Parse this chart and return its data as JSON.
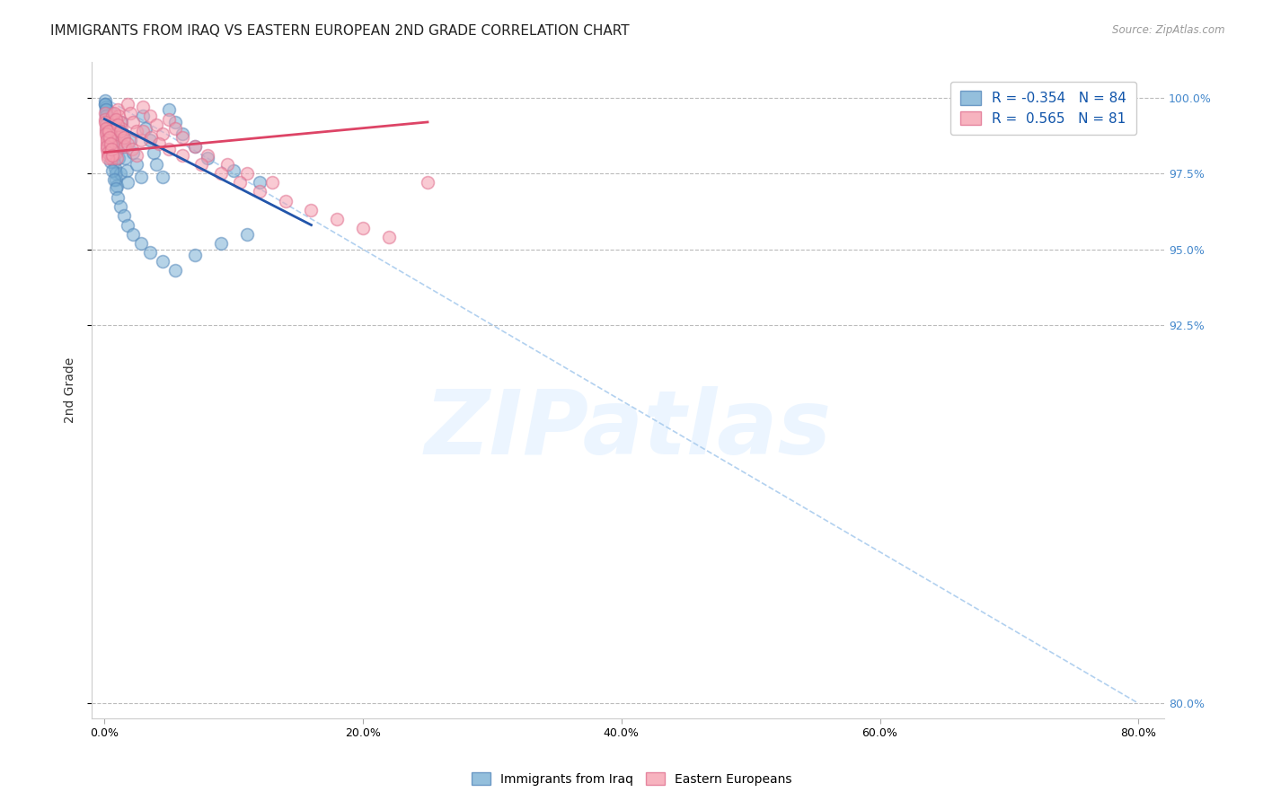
{
  "title": "IMMIGRANTS FROM IRAQ VS EASTERN EUROPEAN 2ND GRADE CORRELATION CHART",
  "source": "Source: ZipAtlas.com",
  "ylabel": "2nd Grade",
  "xlabel_ticks": [
    "0.0%",
    "20.0%",
    "40.0%",
    "60.0%",
    "80.0%"
  ],
  "xlabel_values": [
    0.0,
    20.0,
    40.0,
    60.0,
    80.0
  ],
  "ylabel_ticks": [
    80.0,
    92.5,
    95.0,
    97.5,
    100.0
  ],
  "xlim": [
    -1.0,
    82.0
  ],
  "ylim": [
    79.5,
    101.2
  ],
  "blue_R": -0.354,
  "blue_N": 84,
  "pink_R": 0.565,
  "pink_N": 81,
  "blue_color": "#7ab0d4",
  "pink_color": "#f5a0b0",
  "blue_edge_color": "#5588bb",
  "pink_edge_color": "#e07090",
  "blue_line_color": "#2255aa",
  "pink_line_color": "#dd4466",
  "legend_label_blue": "Immigrants from Iraq",
  "legend_label_pink": "Eastern Europeans",
  "watermark_text": "ZIPatlas",
  "blue_scatter_x": [
    0.05,
    0.08,
    0.1,
    0.12,
    0.15,
    0.18,
    0.2,
    0.22,
    0.25,
    0.28,
    0.3,
    0.32,
    0.35,
    0.38,
    0.4,
    0.42,
    0.45,
    0.48,
    0.5,
    0.52,
    0.55,
    0.58,
    0.6,
    0.62,
    0.65,
    0.68,
    0.7,
    0.72,
    0.75,
    0.8,
    0.85,
    0.9,
    0.95,
    1.0,
    1.0,
    1.1,
    1.2,
    1.3,
    1.4,
    1.5,
    1.6,
    1.7,
    1.8,
    2.0,
    2.2,
    2.5,
    2.8,
    3.0,
    3.2,
    3.5,
    3.8,
    4.0,
    4.5,
    5.0,
    5.5,
    6.0,
    7.0,
    8.0,
    10.0,
    12.0,
    0.06,
    0.09,
    0.13,
    0.17,
    0.21,
    0.26,
    0.33,
    0.41,
    0.5,
    0.6,
    0.72,
    0.85,
    1.0,
    1.2,
    1.5,
    1.8,
    2.2,
    2.8,
    3.5,
    4.5,
    5.5,
    7.0,
    9.0,
    11.0
  ],
  "blue_scatter_y": [
    99.9,
    99.8,
    99.7,
    99.6,
    99.5,
    99.4,
    99.3,
    99.2,
    99.1,
    99.0,
    98.9,
    98.8,
    98.7,
    98.6,
    98.5,
    98.4,
    98.3,
    98.2,
    98.1,
    98.0,
    99.5,
    99.3,
    99.1,
    98.9,
    98.7,
    98.5,
    98.3,
    98.1,
    97.9,
    97.7,
    97.5,
    97.3,
    97.1,
    99.0,
    98.5,
    98.0,
    97.5,
    99.2,
    98.8,
    98.4,
    98.0,
    97.6,
    97.2,
    98.6,
    98.2,
    97.8,
    97.4,
    99.4,
    99.0,
    98.6,
    98.2,
    97.8,
    97.4,
    99.6,
    99.2,
    98.8,
    98.4,
    98.0,
    97.6,
    97.2,
    99.8,
    99.6,
    99.4,
    99.2,
    99.0,
    98.8,
    98.5,
    98.2,
    97.9,
    97.6,
    97.3,
    97.0,
    96.7,
    96.4,
    96.1,
    95.8,
    95.5,
    95.2,
    94.9,
    94.6,
    94.3,
    94.8,
    95.2,
    95.5
  ],
  "pink_scatter_x": [
    0.05,
    0.08,
    0.1,
    0.15,
    0.18,
    0.2,
    0.22,
    0.25,
    0.3,
    0.35,
    0.4,
    0.45,
    0.5,
    0.55,
    0.6,
    0.65,
    0.7,
    0.75,
    0.8,
    0.85,
    0.9,
    0.95,
    1.0,
    1.1,
    1.2,
    1.3,
    1.4,
    1.5,
    1.6,
    1.8,
    2.0,
    2.2,
    2.5,
    2.8,
    3.0,
    3.5,
    4.0,
    4.5,
    5.0,
    5.5,
    6.0,
    7.0,
    8.0,
    9.5,
    11.0,
    13.0,
    0.06,
    0.09,
    0.12,
    0.16,
    0.19,
    0.23,
    0.27,
    0.32,
    0.38,
    0.44,
    0.52,
    0.62,
    0.73,
    0.88,
    1.05,
    1.25,
    1.5,
    1.8,
    2.1,
    2.5,
    3.0,
    3.6,
    4.2,
    5.0,
    6.0,
    7.5,
    9.0,
    10.5,
    12.0,
    14.0,
    16.0,
    18.0,
    20.0,
    22.0,
    25.0
  ],
  "pink_scatter_y": [
    99.5,
    99.3,
    99.1,
    98.9,
    98.7,
    98.5,
    98.3,
    98.1,
    99.0,
    98.8,
    98.6,
    98.4,
    98.2,
    98.0,
    99.4,
    99.2,
    99.0,
    98.8,
    98.6,
    98.4,
    98.2,
    98.0,
    99.6,
    99.4,
    99.2,
    99.0,
    98.8,
    98.6,
    98.4,
    99.8,
    99.5,
    99.2,
    98.9,
    98.6,
    99.7,
    99.4,
    99.1,
    98.8,
    99.3,
    99.0,
    98.7,
    98.4,
    98.1,
    97.8,
    97.5,
    97.2,
    99.2,
    99.0,
    98.8,
    98.6,
    98.4,
    98.2,
    98.0,
    98.9,
    98.7,
    98.5,
    98.3,
    98.1,
    99.5,
    99.3,
    99.1,
    98.9,
    98.7,
    98.5,
    98.3,
    98.1,
    98.9,
    98.7,
    98.5,
    98.3,
    98.1,
    97.8,
    97.5,
    97.2,
    96.9,
    96.6,
    96.3,
    96.0,
    95.7,
    95.4,
    97.2
  ],
  "blue_trend_x": [
    0.0,
    16.0
  ],
  "blue_trend_y": [
    99.3,
    95.8
  ],
  "pink_trend_x": [
    0.0,
    25.0
  ],
  "pink_trend_y": [
    98.2,
    99.2
  ],
  "dash_line_x": [
    0.0,
    80.0
  ],
  "dash_line_y": [
    100.0,
    80.0
  ],
  "title_fontsize": 11,
  "axis_label_fontsize": 10,
  "tick_fontsize": 9,
  "legend_fontsize": 11,
  "right_axis_color": "#4488cc",
  "grid_color": "#bbbbbb",
  "background_color": "#ffffff"
}
